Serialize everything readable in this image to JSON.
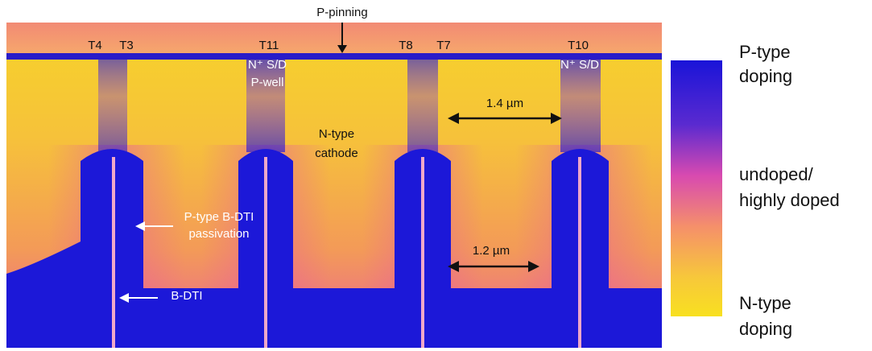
{
  "figure": {
    "annotations": {
      "p_pinning": "P-pinning",
      "terminals": [
        "T4",
        "T3",
        "T11",
        "T8",
        "T7",
        "T10"
      ],
      "sd_labels": [
        "N⁺ S/D",
        "N⁺ S/D"
      ],
      "p_well": "P-well",
      "width_top": "1.4 µm",
      "width_bottom": "1.2 µm",
      "cathode": [
        "N-type",
        "cathode"
      ],
      "passivation": [
        "P-type B-DTI",
        "passivation"
      ],
      "bdti": "B-DTI"
    },
    "colorbar": {
      "top": [
        "P-type",
        "doping"
      ],
      "middle": [
        "undoped/",
        "highly doped"
      ],
      "bottom": [
        "N-type",
        "doping"
      ]
    }
  }
}
